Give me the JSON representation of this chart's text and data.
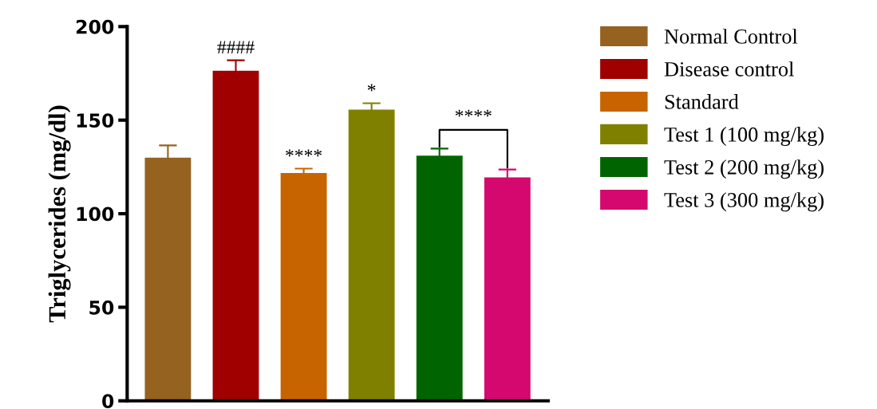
{
  "chart_data": {
    "type": "bar",
    "ylabel": "Triglycerides (mg/dl)",
    "categories": [
      null,
      null,
      null,
      null,
      null,
      null
    ],
    "series": [
      {
        "name": "Normal Control",
        "color": "#956220",
        "values": [
          130,
          null,
          null,
          null,
          null,
          null
        ],
        "errors": [
          6.5,
          null,
          null,
          null,
          null,
          null
        ]
      },
      {
        "name": "Disease control",
        "color": "#a00000",
        "values": [
          null,
          176.4,
          null,
          null,
          null,
          null
        ],
        "errors": [
          null,
          5.6,
          null,
          null,
          null,
          null
        ]
      },
      {
        "name": "Standard",
        "color": "#c86400",
        "values": [
          null,
          null,
          121.7,
          null,
          null,
          null
        ],
        "errors": [
          null,
          null,
          2.4,
          null,
          null,
          null
        ]
      },
      {
        "name": "Test 1 (100 mg/kg)",
        "color": "#808000",
        "values": [
          null,
          null,
          null,
          155.6,
          null,
          null
        ],
        "errors": [
          null,
          null,
          null,
          3.4,
          null,
          null
        ]
      },
      {
        "name": "Test 2 (200 mg/kg)",
        "color": "#006400",
        "values": [
          null,
          null,
          null,
          null,
          131,
          null
        ],
        "errors": [
          null,
          null,
          null,
          null,
          3.8,
          null
        ]
      },
      {
        "name": "Test 3 (300 mg/kg)",
        "color": "#d4086e",
        "values": [
          null,
          null,
          null,
          null,
          null,
          119.4
        ],
        "errors": [
          null,
          null,
          null,
          null,
          null,
          4.2
        ]
      }
    ],
    "annotations": [
      "####",
      "****",
      "*",
      "****"
    ],
    "ylim": [
      0,
      200
    ],
    "yticks": [
      0,
      50,
      100,
      150,
      200
    ],
    "grid": false,
    "legend": "right"
  }
}
